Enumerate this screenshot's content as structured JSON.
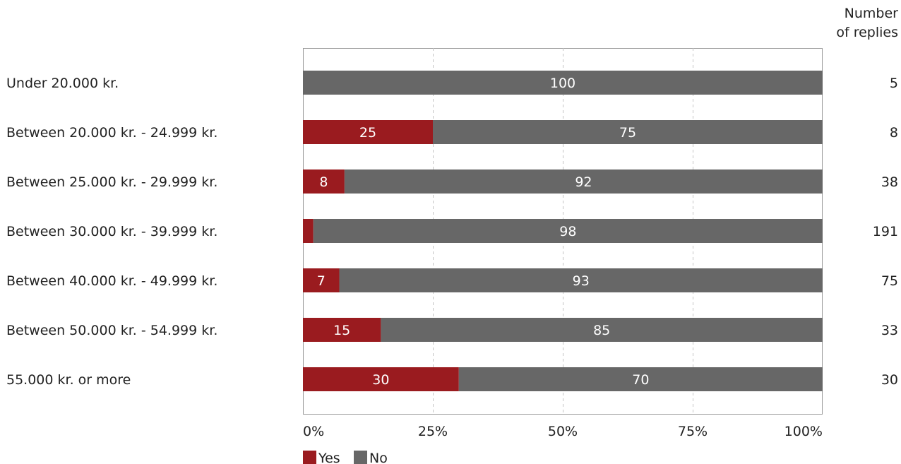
{
  "chart_data": {
    "type": "bar",
    "orientation": "horizontal",
    "stacked": true,
    "percent_scale": true,
    "categories": [
      "Under 20.000 kr.",
      "Between 20.000 kr. - 24.999 kr.",
      "Between 25.000 kr. - 29.999 kr.",
      "Between 30.000 kr. - 39.999 kr.",
      "Between 40.000 kr. - 49.999 kr.",
      "Between 50.000 kr. - 54.999 kr.",
      "55.000 kr. or more"
    ],
    "series": [
      {
        "name": "Yes",
        "color": "#9a1b1f",
        "values": [
          0,
          25,
          8,
          2,
          7,
          15,
          30
        ],
        "labels": [
          "",
          "25",
          "8",
          "",
          "7",
          "15",
          "30"
        ]
      },
      {
        "name": "No",
        "color": "#676767",
        "values": [
          100,
          75,
          92,
          98,
          93,
          85,
          70
        ],
        "labels": [
          "100",
          "75",
          "92",
          "98",
          "93",
          "85",
          "70"
        ]
      }
    ],
    "xlim": [
      0,
      100
    ],
    "x_ticks": [
      "0%",
      "25%",
      "50%",
      "75%",
      "100%"
    ],
    "grid": "vertical dashed",
    "legend": "bottom-left",
    "right_column": {
      "header_line1": "Number",
      "header_line2": "of replies",
      "values": [
        "5",
        "8",
        "38",
        "191",
        "75",
        "33",
        "30"
      ]
    }
  }
}
